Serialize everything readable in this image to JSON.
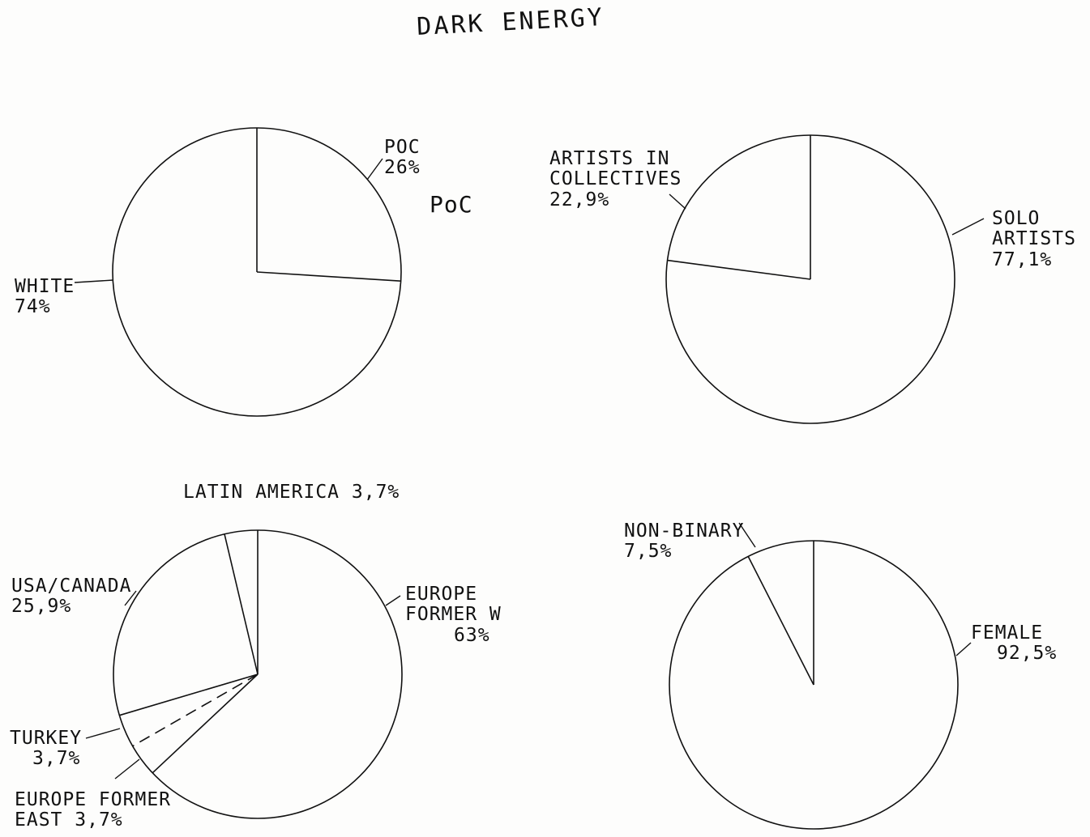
{
  "page": {
    "title": "DARK ENERGY"
  },
  "chart_data": [
    {
      "type": "pie",
      "slices": [
        {
          "label": "POC",
          "value": 26,
          "value_label": "26%"
        },
        {
          "label": "WHITE",
          "value": 74,
          "value_label": "74%"
        }
      ],
      "annotations": [
        "PoC"
      ]
    },
    {
      "type": "pie",
      "slices": [
        {
          "label": "ARTISTS IN COLLECTIVES",
          "value": 22.9,
          "value_label": "22,9%"
        },
        {
          "label": "SOLO ARTISTS",
          "value": 77.1,
          "value_label": "77,1%"
        }
      ]
    },
    {
      "type": "pie",
      "slices": [
        {
          "label": "LATIN AMERICA",
          "value": 3.7,
          "value_label": "3,7%"
        },
        {
          "label": "USA/CANADA",
          "value": 25.9,
          "value_label": "25,9%"
        },
        {
          "label": "TURKEY",
          "value": 3.7,
          "value_label": "3,7%"
        },
        {
          "label": "EUROPE FORMER EAST",
          "value": 3.7,
          "value_label": "3,7%"
        },
        {
          "label": "EUROPE FORMER W",
          "value": 63,
          "value_label": "63%"
        }
      ]
    },
    {
      "type": "pie",
      "slices": [
        {
          "label": "NON-BINARY",
          "value": 7.5,
          "value_label": "7,5%"
        },
        {
          "label": "FEMALE",
          "value": 92.5,
          "value_label": "92,5%"
        }
      ]
    }
  ],
  "style": {
    "ink": "#111111",
    "paper": "#fdfdfc"
  }
}
